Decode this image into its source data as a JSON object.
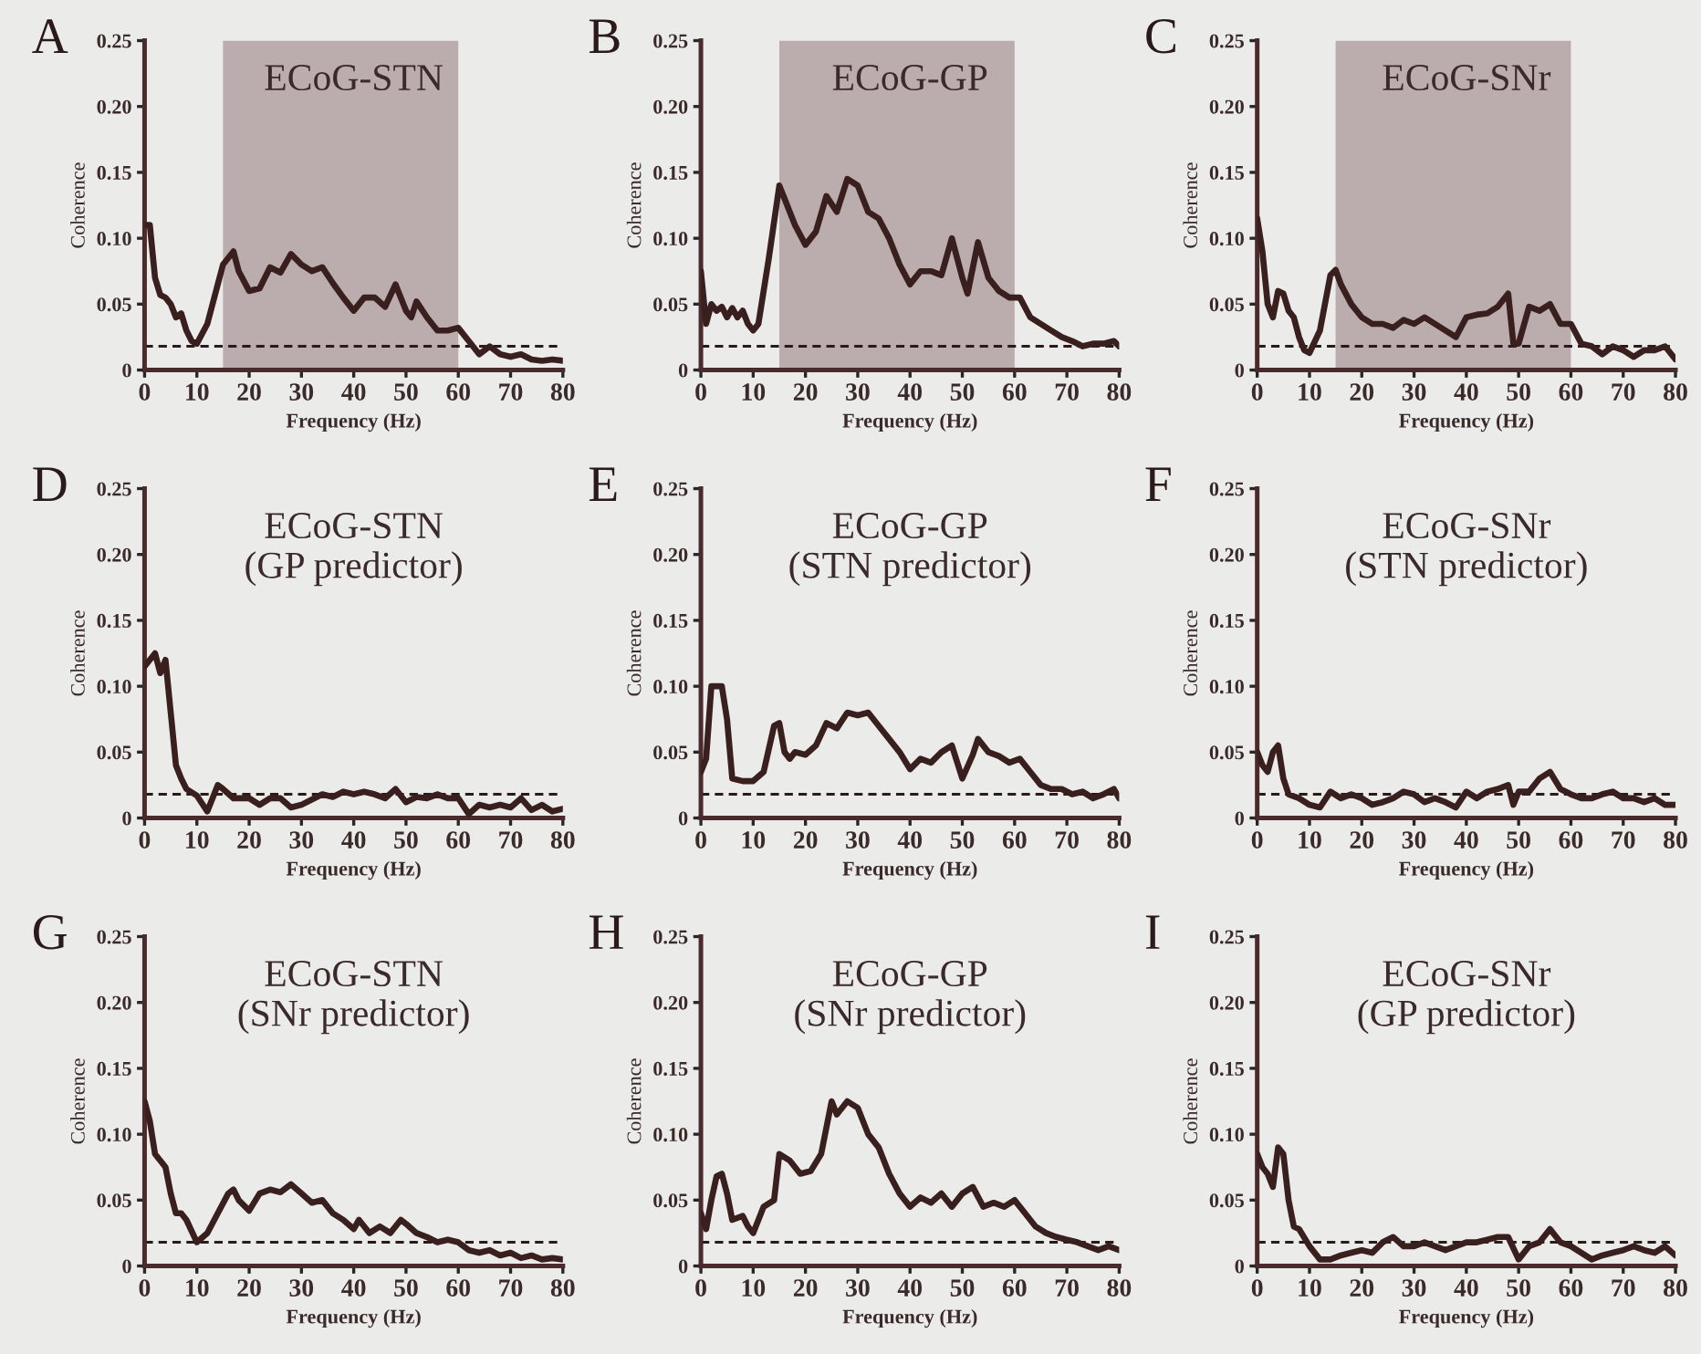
{
  "chart_data": [
    {
      "type": "line",
      "title": "ECoG-STN",
      "xlabel": "Frequency (Hz)",
      "ylabel": "Coherence",
      "annotations": [
        "A"
      ],
      "xlim": [
        0,
        80
      ],
      "xticks": [
        0,
        10,
        20,
        30,
        40,
        50,
        60,
        70,
        80
      ],
      "ylim": [
        0,
        0.25
      ],
      "yticks": [
        0,
        {
          "value": 0.05,
          "label": "0.05"
        },
        {
          "value": 0.1,
          "label": "0.10"
        },
        {
          "value": 0.15,
          "label": "0.15"
        },
        {
          "value": 0.2,
          "label": "0.20"
        },
        {
          "value": 0.25,
          "label": "0.25"
        }
      ],
      "bands": [
        {
          "axis": "x",
          "from": 15,
          "to": 60,
          "color": "#bbadad"
        }
      ],
      "ref_lines": [
        {
          "axis": "y",
          "value": 0.018,
          "line_style": "dashed",
          "color": "#2a1a1a"
        }
      ],
      "series": [
        {
          "color": "#3a1f1f",
          "x": [
            0,
            1,
            2,
            3,
            4,
            5,
            6,
            7,
            8,
            9,
            10,
            12,
            14,
            15,
            16,
            17,
            18,
            20,
            22,
            24,
            26,
            28,
            30,
            32,
            34,
            36,
            38,
            40,
            42,
            44,
            46,
            48,
            50,
            51,
            52,
            54,
            56,
            58,
            60,
            62,
            64,
            66,
            68,
            70,
            72,
            74,
            76,
            78,
            80
          ],
          "values": [
            0.11,
            0.11,
            0.07,
            0.057,
            0.055,
            0.05,
            0.04,
            0.043,
            0.03,
            0.022,
            0.02,
            0.035,
            0.065,
            0.08,
            0.085,
            0.09,
            0.075,
            0.06,
            0.062,
            0.078,
            0.074,
            0.088,
            0.08,
            0.075,
            0.078,
            0.066,
            0.055,
            0.045,
            0.055,
            0.055,
            0.048,
            0.065,
            0.045,
            0.04,
            0.052,
            0.04,
            0.03,
            0.03,
            0.032,
            0.022,
            0.012,
            0.018,
            0.012,
            0.01,
            0.012,
            0.008,
            0.007,
            0.008,
            0.007
          ]
        }
      ]
    },
    {
      "type": "line",
      "title": "ECoG-GP",
      "xlabel": "Frequency (Hz)",
      "ylabel": "Coherence",
      "annotations": [
        "B"
      ],
      "xlim": [
        0,
        80
      ],
      "xticks": [
        0,
        10,
        20,
        30,
        40,
        50,
        60,
        70,
        80
      ],
      "ylim": [
        0,
        0.25
      ],
      "yticks": [
        0,
        {
          "value": 0.05,
          "label": "0.05"
        },
        {
          "value": 0.1,
          "label": "0.10"
        },
        {
          "value": 0.15,
          "label": "0.15"
        },
        {
          "value": 0.2,
          "label": "0.20"
        },
        {
          "value": 0.25,
          "label": "0.25"
        }
      ],
      "bands": [
        {
          "axis": "x",
          "from": 15,
          "to": 60,
          "color": "#bbadad"
        }
      ],
      "ref_lines": [
        {
          "axis": "y",
          "value": 0.018,
          "line_style": "dashed",
          "color": "#2a1a1a"
        }
      ],
      "series": [
        {
          "color": "#3a1f1f",
          "x": [
            0,
            1,
            2,
            3,
            4,
            5,
            6,
            7,
            8,
            9,
            10,
            11,
            13,
            15,
            16,
            18,
            20,
            22,
            24,
            26,
            28,
            30,
            32,
            34,
            36,
            38,
            40,
            42,
            44,
            46,
            48,
            50,
            51,
            53,
            55,
            57,
            59,
            61,
            63,
            65,
            67,
            69,
            71,
            73,
            75,
            77,
            79,
            80
          ],
          "values": [
            0.075,
            0.035,
            0.05,
            0.045,
            0.048,
            0.04,
            0.047,
            0.04,
            0.045,
            0.035,
            0.03,
            0.035,
            0.085,
            0.14,
            0.13,
            0.11,
            0.095,
            0.105,
            0.132,
            0.12,
            0.145,
            0.14,
            0.12,
            0.115,
            0.1,
            0.08,
            0.065,
            0.075,
            0.075,
            0.072,
            0.1,
            0.07,
            0.058,
            0.097,
            0.07,
            0.06,
            0.055,
            0.055,
            0.04,
            0.035,
            0.03,
            0.025,
            0.022,
            0.018,
            0.02,
            0.02,
            0.022,
            0.018
          ]
        }
      ]
    },
    {
      "type": "line",
      "title": "ECoG-SNr",
      "xlabel": "Frequency (Hz)",
      "ylabel": "Coherence",
      "annotations": [
        "C"
      ],
      "xlim": [
        0,
        80
      ],
      "xticks": [
        0,
        10,
        20,
        30,
        40,
        50,
        60,
        70,
        80
      ],
      "ylim": [
        0,
        0.25
      ],
      "yticks": [
        0,
        {
          "value": 0.05,
          "label": "0.05"
        },
        {
          "value": 0.1,
          "label": "0.10"
        },
        {
          "value": 0.15,
          "label": "0.15"
        },
        {
          "value": 0.2,
          "label": "0.20"
        },
        {
          "value": 0.25,
          "label": "0.25"
        }
      ],
      "bands": [
        {
          "axis": "x",
          "from": 15,
          "to": 60,
          "color": "#bbadad"
        }
      ],
      "ref_lines": [
        {
          "axis": "y",
          "value": 0.018,
          "line_style": "dashed",
          "color": "#2a1a1a"
        }
      ],
      "series": [
        {
          "color": "#3a1f1f",
          "x": [
            0,
            1,
            2,
            3,
            4,
            5,
            6,
            7,
            8,
            9,
            10,
            12,
            14,
            15,
            16,
            18,
            20,
            22,
            24,
            26,
            28,
            30,
            32,
            34,
            36,
            38,
            40,
            42,
            44,
            46,
            48,
            49,
            50,
            52,
            54,
            56,
            58,
            60,
            62,
            64,
            66,
            68,
            70,
            72,
            74,
            76,
            78,
            80
          ],
          "values": [
            0.115,
            0.09,
            0.05,
            0.04,
            0.06,
            0.058,
            0.045,
            0.04,
            0.025,
            0.015,
            0.013,
            0.03,
            0.072,
            0.076,
            0.065,
            0.05,
            0.04,
            0.035,
            0.035,
            0.032,
            0.038,
            0.035,
            0.04,
            0.035,
            0.03,
            0.025,
            0.04,
            0.042,
            0.043,
            0.048,
            0.058,
            0.02,
            0.02,
            0.048,
            0.045,
            0.05,
            0.035,
            0.035,
            0.02,
            0.018,
            0.012,
            0.018,
            0.015,
            0.01,
            0.015,
            0.015,
            0.018,
            0.008
          ]
        }
      ]
    },
    {
      "type": "line",
      "title": "ECoG-STN\n(GP predictor)",
      "xlabel": "Frequency (Hz)",
      "ylabel": "Coherence",
      "annotations": [
        "D"
      ],
      "xlim": [
        0,
        80
      ],
      "xticks": [
        0,
        10,
        20,
        30,
        40,
        50,
        60,
        70,
        80
      ],
      "ylim": [
        0,
        0.25
      ],
      "yticks": [
        0,
        {
          "value": 0.05,
          "label": "0.05"
        },
        {
          "value": 0.1,
          "label": "0.10"
        },
        {
          "value": 0.15,
          "label": "0.15"
        },
        {
          "value": 0.2,
          "label": "0.20"
        },
        {
          "value": 0.25,
          "label": "0.25"
        }
      ],
      "ref_lines": [
        {
          "axis": "y",
          "value": 0.018,
          "line_style": "dashed",
          "color": "#2a1a1a"
        }
      ],
      "series": [
        {
          "color": "#3a1f1f",
          "x": [
            0,
            1,
            2,
            3,
            4,
            5,
            6,
            7,
            8,
            10,
            12,
            14,
            15,
            17,
            20,
            22,
            24,
            26,
            28,
            30,
            32,
            34,
            36,
            38,
            40,
            42,
            44,
            46,
            48,
            50,
            52,
            54,
            56,
            58,
            60,
            62,
            64,
            66,
            68,
            70,
            72,
            74,
            76,
            78,
            80
          ],
          "values": [
            0.115,
            0.12,
            0.125,
            0.11,
            0.12,
            0.08,
            0.04,
            0.03,
            0.022,
            0.017,
            0.005,
            0.025,
            0.022,
            0.015,
            0.015,
            0.01,
            0.015,
            0.015,
            0.008,
            0.01,
            0.014,
            0.018,
            0.016,
            0.02,
            0.018,
            0.02,
            0.018,
            0.015,
            0.022,
            0.012,
            0.016,
            0.015,
            0.018,
            0.015,
            0.015,
            0.003,
            0.01,
            0.008,
            0.01,
            0.008,
            0.015,
            0.006,
            0.01,
            0.005,
            0.007
          ]
        }
      ]
    },
    {
      "type": "line",
      "title": "ECoG-GP\n(STN predictor)",
      "xlabel": "Frequency (Hz)",
      "ylabel": "Coherence",
      "annotations": [
        "E"
      ],
      "xlim": [
        0,
        80
      ],
      "xticks": [
        0,
        10,
        20,
        30,
        40,
        50,
        60,
        70,
        80
      ],
      "ylim": [
        0,
        0.25
      ],
      "yticks": [
        0,
        {
          "value": 0.05,
          "label": "0.05"
        },
        {
          "value": 0.1,
          "label": "0.10"
        },
        {
          "value": 0.15,
          "label": "0.15"
        },
        {
          "value": 0.2,
          "label": "0.20"
        },
        {
          "value": 0.25,
          "label": "0.25"
        }
      ],
      "ref_lines": [
        {
          "axis": "y",
          "value": 0.018,
          "line_style": "dashed",
          "color": "#2a1a1a"
        }
      ],
      "series": [
        {
          "color": "#3a1f1f",
          "x": [
            0,
            1,
            2,
            3,
            4,
            5,
            6,
            8,
            10,
            12,
            14,
            15,
            16,
            17,
            18,
            20,
            22,
            24,
            26,
            28,
            30,
            32,
            34,
            36,
            38,
            40,
            42,
            44,
            46,
            48,
            50,
            52,
            53,
            55,
            57,
            59,
            61,
            63,
            65,
            67,
            69,
            71,
            73,
            75,
            77,
            79,
            80
          ],
          "values": [
            0.035,
            0.045,
            0.1,
            0.1,
            0.1,
            0.075,
            0.03,
            0.028,
            0.028,
            0.035,
            0.07,
            0.072,
            0.05,
            0.045,
            0.05,
            0.048,
            0.055,
            0.072,
            0.068,
            0.08,
            0.078,
            0.08,
            0.07,
            0.06,
            0.05,
            0.037,
            0.045,
            0.042,
            0.05,
            0.055,
            0.03,
            0.048,
            0.06,
            0.05,
            0.047,
            0.042,
            0.045,
            0.035,
            0.025,
            0.022,
            0.022,
            0.018,
            0.02,
            0.015,
            0.018,
            0.022,
            0.015
          ]
        }
      ]
    },
    {
      "type": "line",
      "title": "ECoG-SNr\n(STN predictor)",
      "xlabel": "Frequency (Hz)",
      "ylabel": "Coherence",
      "annotations": [
        "F"
      ],
      "xlim": [
        0,
        80
      ],
      "xticks": [
        0,
        10,
        20,
        30,
        40,
        50,
        60,
        70,
        80
      ],
      "ylim": [
        0,
        0.25
      ],
      "yticks": [
        0,
        {
          "value": 0.05,
          "label": "0.05"
        },
        {
          "value": 0.1,
          "label": "0.10"
        },
        {
          "value": 0.15,
          "label": "0.15"
        },
        {
          "value": 0.2,
          "label": "0.20"
        },
        {
          "value": 0.25,
          "label": "0.25"
        }
      ],
      "ref_lines": [
        {
          "axis": "y",
          "value": 0.018,
          "line_style": "dashed",
          "color": "#2a1a1a"
        }
      ],
      "series": [
        {
          "color": "#3a1f1f",
          "x": [
            0,
            1,
            2,
            3,
            4,
            5,
            6,
            8,
            10,
            12,
            14,
            16,
            18,
            20,
            22,
            24,
            26,
            28,
            30,
            32,
            34,
            36,
            38,
            40,
            42,
            44,
            46,
            48,
            49,
            50,
            52,
            54,
            56,
            58,
            60,
            62,
            64,
            66,
            68,
            70,
            72,
            74,
            76,
            78,
            80
          ],
          "values": [
            0.05,
            0.04,
            0.035,
            0.05,
            0.055,
            0.03,
            0.018,
            0.015,
            0.01,
            0.008,
            0.02,
            0.015,
            0.018,
            0.015,
            0.01,
            0.012,
            0.015,
            0.02,
            0.018,
            0.012,
            0.015,
            0.012,
            0.008,
            0.02,
            0.015,
            0.02,
            0.022,
            0.025,
            0.01,
            0.02,
            0.02,
            0.03,
            0.035,
            0.022,
            0.018,
            0.015,
            0.015,
            0.018,
            0.02,
            0.015,
            0.015,
            0.012,
            0.015,
            0.01,
            0.01
          ]
        }
      ]
    },
    {
      "type": "line",
      "title": "ECoG-STN\n(SNr predictor)",
      "xlabel": "Frequency (Hz)",
      "ylabel": "Coherence",
      "annotations": [
        "G"
      ],
      "xlim": [
        0,
        80
      ],
      "xticks": [
        0,
        10,
        20,
        30,
        40,
        50,
        60,
        70,
        80
      ],
      "ylim": [
        0,
        0.25
      ],
      "yticks": [
        0,
        {
          "value": 0.05,
          "label": "0.05"
        },
        {
          "value": 0.1,
          "label": "0.10"
        },
        {
          "value": 0.15,
          "label": "0.15"
        },
        {
          "value": 0.2,
          "label": "0.20"
        },
        {
          "value": 0.25,
          "label": "0.25"
        }
      ],
      "ref_lines": [
        {
          "axis": "y",
          "value": 0.018,
          "line_style": "dashed",
          "color": "#2a1a1a"
        }
      ],
      "series": [
        {
          "color": "#3a1f1f",
          "x": [
            0,
            1,
            2,
            3,
            4,
            5,
            6,
            7,
            8,
            10,
            12,
            14,
            16,
            17,
            18,
            20,
            22,
            24,
            26,
            28,
            30,
            32,
            34,
            36,
            38,
            40,
            41,
            43,
            45,
            47,
            49,
            50,
            52,
            54,
            56,
            58,
            60,
            62,
            64,
            66,
            68,
            70,
            72,
            74,
            76,
            78,
            80
          ],
          "values": [
            0.125,
            0.11,
            0.085,
            0.08,
            0.075,
            0.055,
            0.04,
            0.04,
            0.035,
            0.018,
            0.025,
            0.04,
            0.055,
            0.058,
            0.05,
            0.042,
            0.055,
            0.058,
            0.056,
            0.062,
            0.055,
            0.048,
            0.05,
            0.04,
            0.035,
            0.028,
            0.035,
            0.025,
            0.03,
            0.025,
            0.035,
            0.032,
            0.025,
            0.022,
            0.018,
            0.02,
            0.018,
            0.012,
            0.01,
            0.012,
            0.008,
            0.01,
            0.006,
            0.008,
            0.005,
            0.006,
            0.005
          ]
        }
      ]
    },
    {
      "type": "line",
      "title": "ECoG-GP\n(SNr predictor)",
      "xlabel": "Frequency (Hz)",
      "ylabel": "Coherence",
      "annotations": [
        "H"
      ],
      "xlim": [
        0,
        80
      ],
      "xticks": [
        0,
        10,
        20,
        30,
        40,
        50,
        60,
        70,
        80
      ],
      "ylim": [
        0,
        0.25
      ],
      "yticks": [
        0,
        {
          "value": 0.05,
          "label": "0.05"
        },
        {
          "value": 0.1,
          "label": "0.10"
        },
        {
          "value": 0.15,
          "label": "0.15"
        },
        {
          "value": 0.2,
          "label": "0.20"
        },
        {
          "value": 0.25,
          "label": "0.25"
        }
      ],
      "ref_lines": [
        {
          "axis": "y",
          "value": 0.018,
          "line_style": "dashed",
          "color": "#2a1a1a"
        }
      ],
      "series": [
        {
          "color": "#3a1f1f",
          "x": [
            0,
            1,
            2,
            3,
            4,
            5,
            6,
            8,
            9,
            10,
            12,
            14,
            15,
            17,
            19,
            21,
            23,
            25,
            26,
            28,
            30,
            32,
            34,
            36,
            38,
            40,
            42,
            44,
            46,
            48,
            50,
            52,
            54,
            56,
            58,
            60,
            62,
            64,
            66,
            68,
            70,
            72,
            74,
            76,
            78,
            80
          ],
          "values": [
            0.04,
            0.028,
            0.05,
            0.068,
            0.07,
            0.055,
            0.035,
            0.038,
            0.03,
            0.025,
            0.045,
            0.05,
            0.085,
            0.08,
            0.07,
            0.072,
            0.085,
            0.125,
            0.115,
            0.125,
            0.12,
            0.1,
            0.09,
            0.07,
            0.055,
            0.045,
            0.052,
            0.048,
            0.055,
            0.045,
            0.055,
            0.06,
            0.045,
            0.048,
            0.045,
            0.05,
            0.04,
            0.03,
            0.025,
            0.022,
            0.02,
            0.018,
            0.015,
            0.012,
            0.015,
            0.012
          ]
        }
      ]
    },
    {
      "type": "line",
      "title": "ECoG-SNr\n(GP predictor)",
      "xlabel": "Frequency (Hz)",
      "ylabel": "Coherence",
      "annotations": [
        "I"
      ],
      "xlim": [
        0,
        80
      ],
      "xticks": [
        0,
        10,
        20,
        30,
        40,
        50,
        60,
        70,
        80
      ],
      "ylim": [
        0,
        0.25
      ],
      "yticks": [
        0,
        {
          "value": 0.05,
          "label": "0.05"
        },
        {
          "value": 0.1,
          "label": "0.10"
        },
        {
          "value": 0.15,
          "label": "0.15"
        },
        {
          "value": 0.2,
          "label": "0.20"
        },
        {
          "value": 0.25,
          "label": "0.25"
        }
      ],
      "ref_lines": [
        {
          "axis": "y",
          "value": 0.018,
          "line_style": "dashed",
          "color": "#2a1a1a"
        }
      ],
      "series": [
        {
          "color": "#3a1f1f",
          "x": [
            0,
            1,
            2,
            3,
            4,
            5,
            6,
            7,
            8,
            10,
            12,
            14,
            16,
            18,
            20,
            22,
            24,
            26,
            28,
            30,
            32,
            34,
            36,
            38,
            40,
            42,
            44,
            46,
            48,
            50,
            52,
            54,
            56,
            58,
            60,
            62,
            64,
            66,
            68,
            70,
            72,
            74,
            76,
            78,
            80
          ],
          "values": [
            0.085,
            0.075,
            0.07,
            0.06,
            0.09,
            0.085,
            0.05,
            0.03,
            0.028,
            0.015,
            0.005,
            0.005,
            0.008,
            0.01,
            0.012,
            0.01,
            0.018,
            0.022,
            0.015,
            0.015,
            0.018,
            0.015,
            0.012,
            0.015,
            0.018,
            0.018,
            0.02,
            0.022,
            0.022,
            0.005,
            0.015,
            0.018,
            0.028,
            0.018,
            0.015,
            0.01,
            0.005,
            0.008,
            0.01,
            0.012,
            0.015,
            0.012,
            0.01,
            0.015,
            0.008
          ]
        }
      ]
    }
  ]
}
